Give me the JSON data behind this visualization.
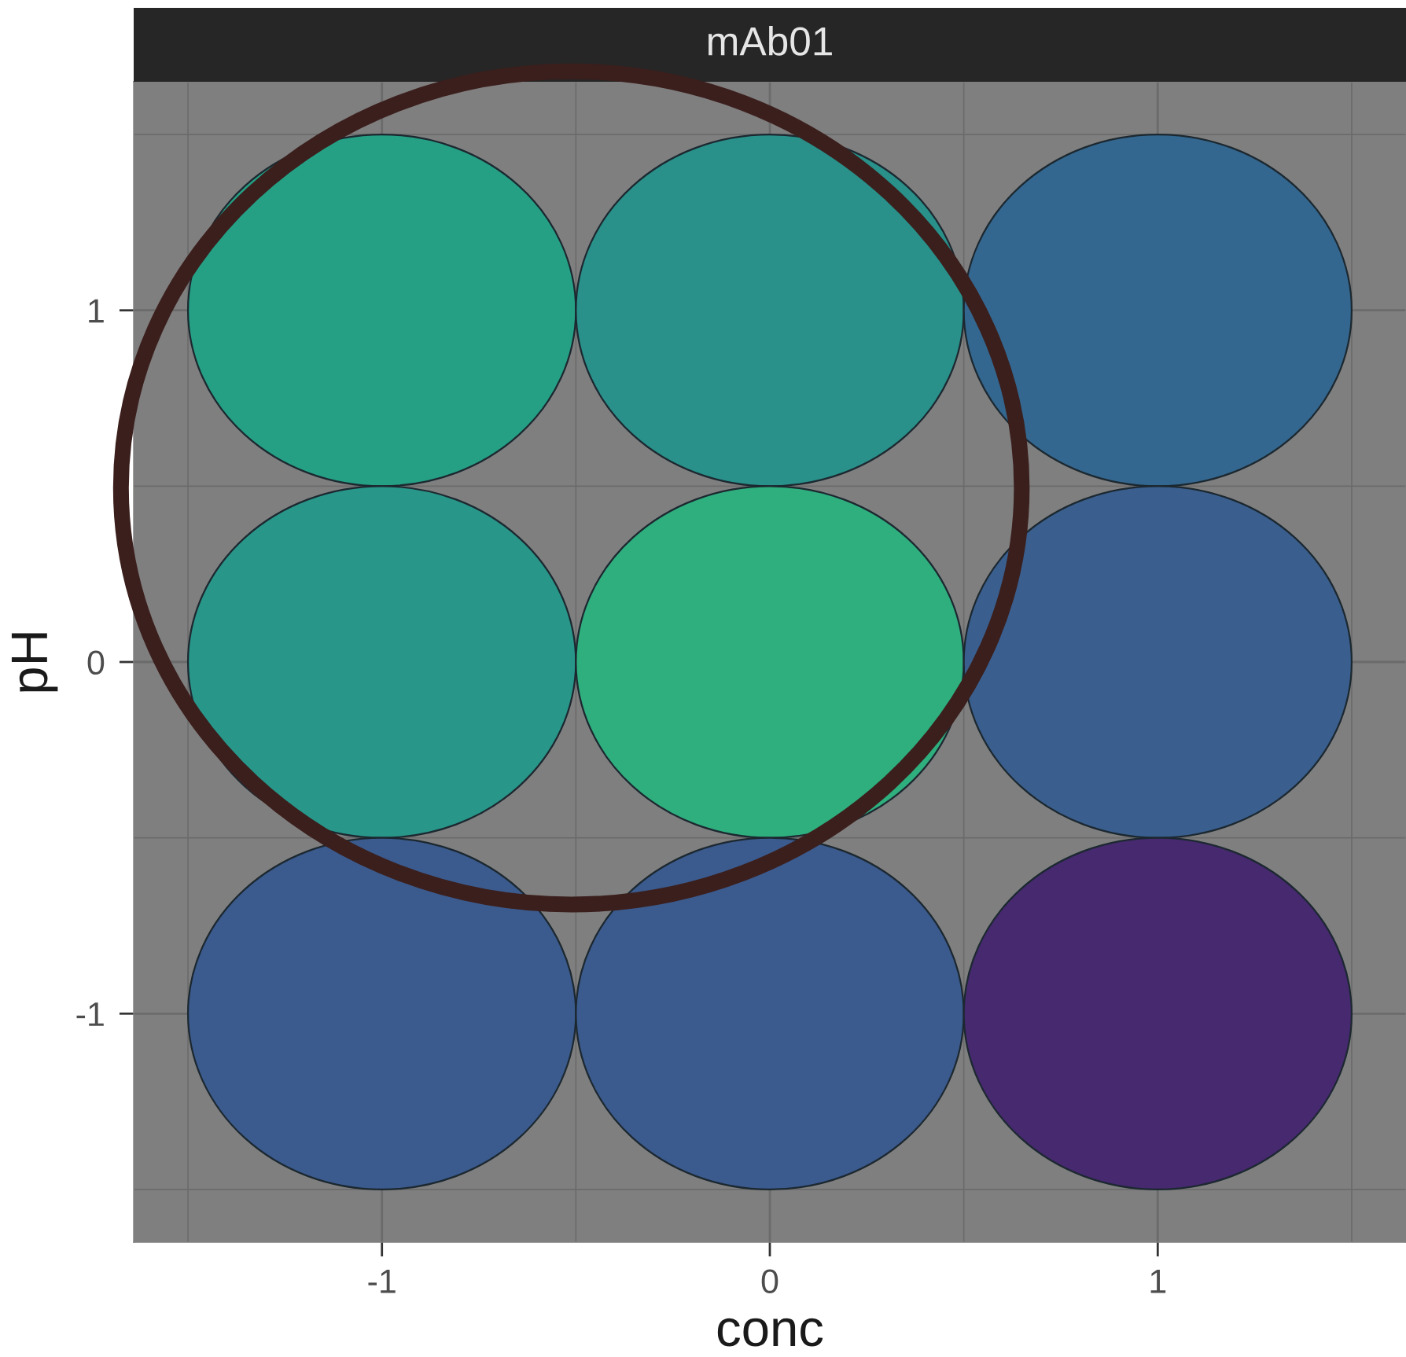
{
  "chart_data": {
    "type": "scatter",
    "title": "mAb01",
    "xlabel": "conc",
    "ylabel": "pH",
    "x": [
      -1,
      0,
      1,
      -1,
      0,
      1,
      -1,
      0,
      1
    ],
    "values": [
      1,
      1,
      1,
      0,
      0,
      0,
      -1,
      -1,
      -1
    ],
    "colors": [
      "#25a085",
      "#29908a",
      "#34678f",
      "#29968a",
      "#2fae7e",
      "#3a5f8e",
      "#3b5b8e",
      "#3b5a8d",
      "#46296f"
    ],
    "xlim": [
      -1.64,
      1.64
    ],
    "ylim": [
      -1.65,
      1.65
    ],
    "xticks": [
      -1,
      0,
      1
    ],
    "yticks": [
      -1,
      0,
      1
    ],
    "grid": true,
    "marker": "circle"
  }
}
